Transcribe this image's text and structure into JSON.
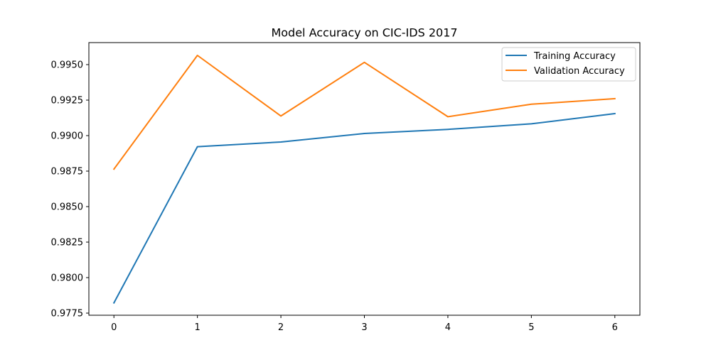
{
  "chart_data": {
    "type": "line",
    "title": "Model Accuracy on CIC-IDS 2017",
    "xlabel": "",
    "ylabel": "",
    "x": [
      0,
      1,
      2,
      3,
      4,
      5,
      6
    ],
    "xticks": [
      "0",
      "1",
      "2",
      "3",
      "4",
      "5",
      "6"
    ],
    "xlim": [
      -0.3,
      6.3
    ],
    "ylim": [
      0.97735,
      0.99655
    ],
    "yticks": [
      "0.9775",
      "0.9800",
      "0.9825",
      "0.9850",
      "0.9875",
      "0.9900",
      "0.9925",
      "0.9950"
    ],
    "grid": false,
    "legend_position": "top-right",
    "series": [
      {
        "name": "Training Accuracy",
        "color": "#1f77b4",
        "values": [
          0.97822,
          0.98922,
          0.98955,
          0.99015,
          0.99044,
          0.99083,
          0.99155
        ]
      },
      {
        "name": "Validation Accuracy",
        "color": "#ff7f0e",
        "values": [
          0.98764,
          0.99565,
          0.99138,
          0.99516,
          0.99133,
          0.99221,
          0.9926
        ]
      }
    ]
  }
}
